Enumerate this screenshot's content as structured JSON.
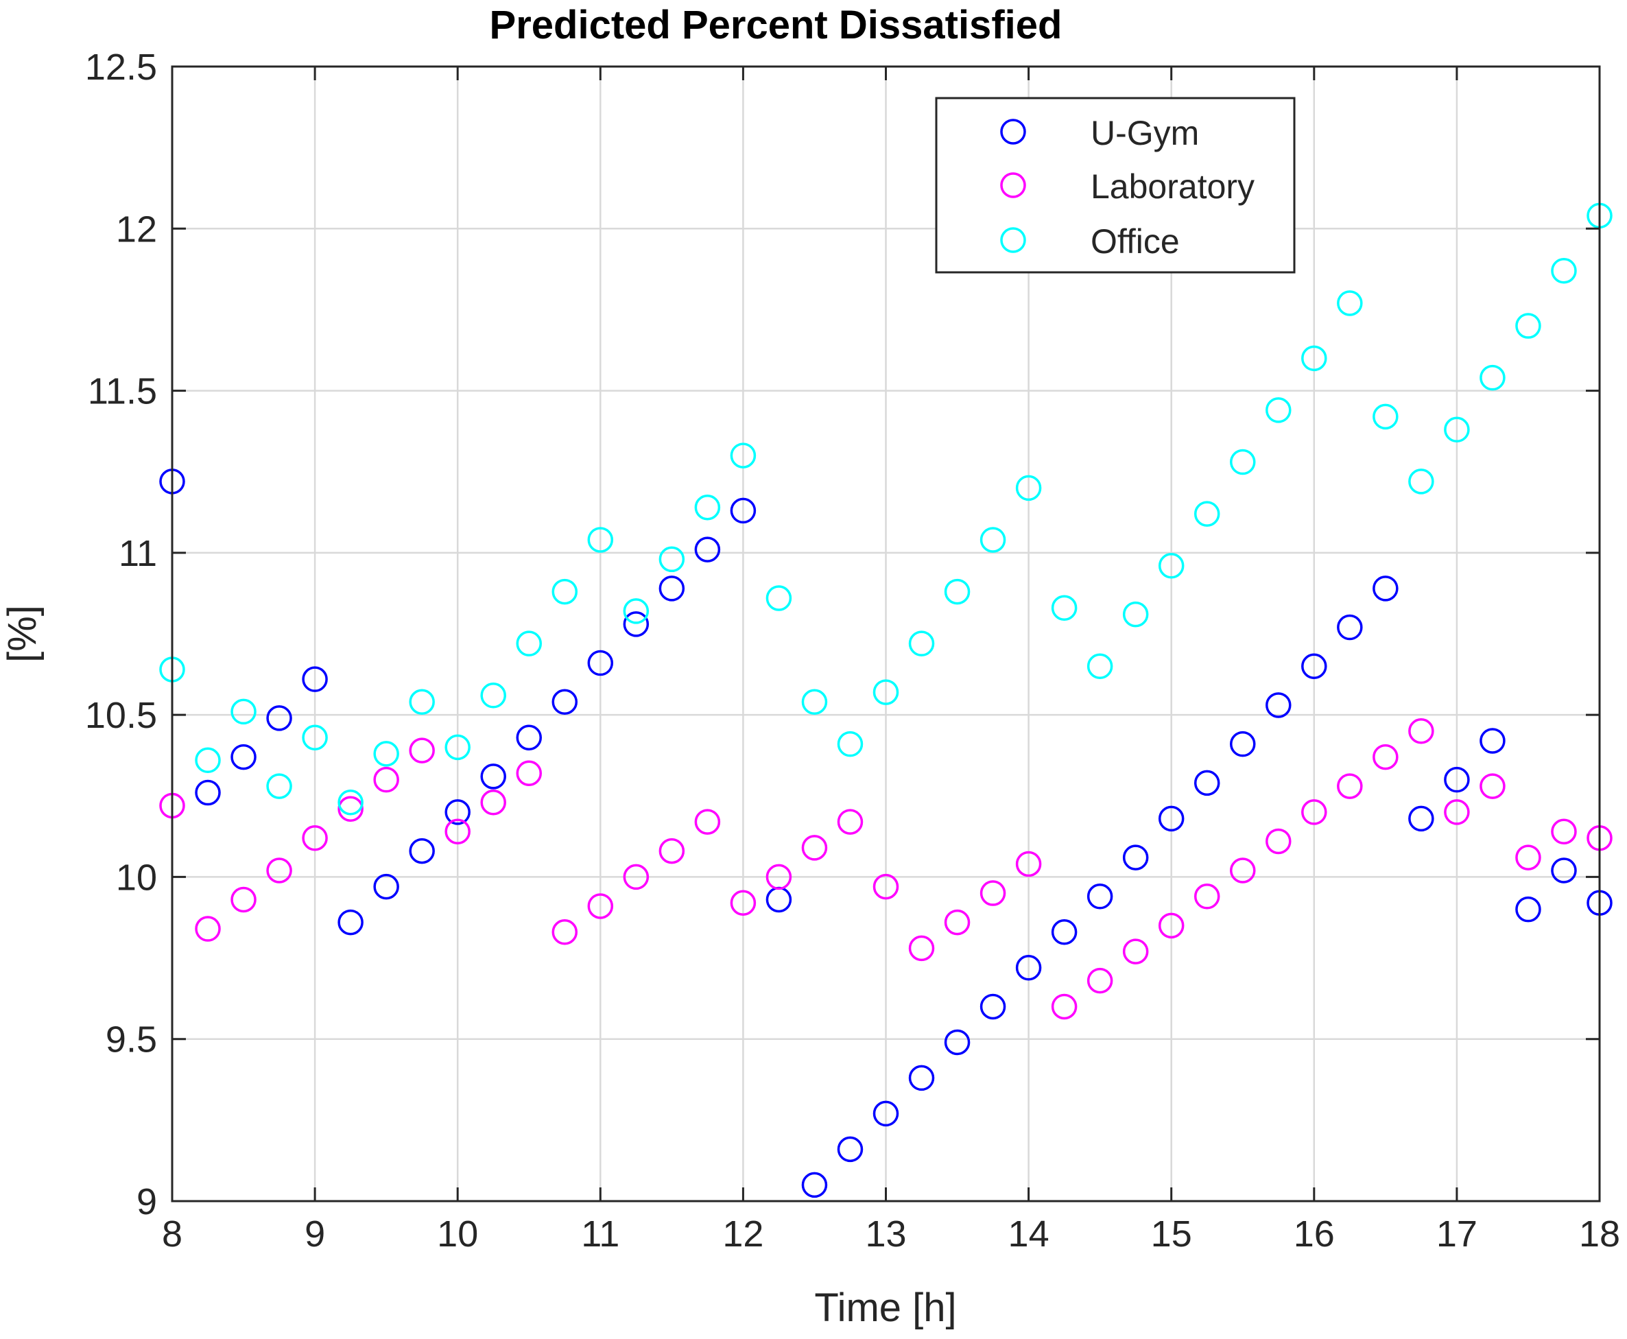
{
  "chart_data": {
    "type": "scatter",
    "title": "Predicted Percent Dissatisfied",
    "xlabel": "Time [h]",
    "ylabel": "[%]",
    "xlim": [
      8,
      18
    ],
    "ylim": [
      9,
      12.5
    ],
    "grid": true,
    "legend_position": "top-right",
    "x_ticks": [
      8,
      9,
      10,
      11,
      12,
      13,
      14,
      15,
      16,
      17,
      18
    ],
    "y_ticks": [
      9,
      9.5,
      10,
      10.5,
      11,
      11.5,
      12,
      12.5
    ],
    "x_tick_labels": [
      "8",
      "9",
      "10",
      "11",
      "12",
      "13",
      "14",
      "15",
      "16",
      "17",
      "18"
    ],
    "y_tick_labels": [
      "9",
      "9.5",
      "10",
      "10.5",
      "11",
      "11.5",
      "12",
      "12.5"
    ],
    "x": [
      8,
      8.25,
      8.5,
      8.75,
      9,
      9.25,
      9.5,
      9.75,
      10,
      10.25,
      10.5,
      10.75,
      11,
      11.25,
      11.5,
      11.75,
      12,
      12.25,
      12.5,
      12.75,
      13,
      13.25,
      13.5,
      13.75,
      14,
      14.25,
      14.5,
      14.75,
      15,
      15.25,
      15.5,
      15.75,
      16,
      16.25,
      16.5,
      16.75,
      17,
      17.25,
      17.5,
      17.75,
      18
    ],
    "series": [
      {
        "name": "U-Gym",
        "color": "#0000ff",
        "values": [
          11.22,
          10.26,
          10.37,
          10.49,
          10.61,
          9.86,
          9.97,
          10.08,
          10.2,
          10.31,
          10.43,
          10.54,
          10.66,
          10.78,
          10.89,
          11.01,
          11.13,
          9.93,
          9.05,
          9.16,
          9.27,
          9.38,
          9.49,
          9.6,
          9.72,
          9.83,
          9.94,
          10.06,
          10.18,
          10.29,
          10.41,
          10.53,
          10.65,
          10.77,
          10.89,
          10.18,
          10.3,
          10.42,
          9.9,
          10.02,
          9.92
        ]
      },
      {
        "name": "Laboratory",
        "color": "#ff00ff",
        "values": [
          10.22,
          9.84,
          9.93,
          10.02,
          10.12,
          10.21,
          10.3,
          10.39,
          10.14,
          10.23,
          10.32,
          9.83,
          9.91,
          10.0,
          10.08,
          10.17,
          9.92,
          10.0,
          10.09,
          10.17,
          9.97,
          9.78,
          9.86,
          9.95,
          10.04,
          9.6,
          9.68,
          9.77,
          9.85,
          9.94,
          10.02,
          10.11,
          10.2,
          10.28,
          10.37,
          10.45,
          10.2,
          10.28,
          10.06,
          10.14,
          10.12
        ]
      },
      {
        "name": "Office",
        "color": "#00ffff",
        "values": [
          10.64,
          10.36,
          10.51,
          10.28,
          10.43,
          10.23,
          10.38,
          10.54,
          10.4,
          10.56,
          10.72,
          10.88,
          11.04,
          10.82,
          10.98,
          11.14,
          11.3,
          10.86,
          10.54,
          10.41,
          10.57,
          10.72,
          10.88,
          11.04,
          11.2,
          10.83,
          10.65,
          10.81,
          10.96,
          11.12,
          11.28,
          11.44,
          11.6,
          11.77,
          11.42,
          11.22,
          11.38,
          11.54,
          11.7,
          11.87,
          12.04
        ]
      }
    ]
  }
}
